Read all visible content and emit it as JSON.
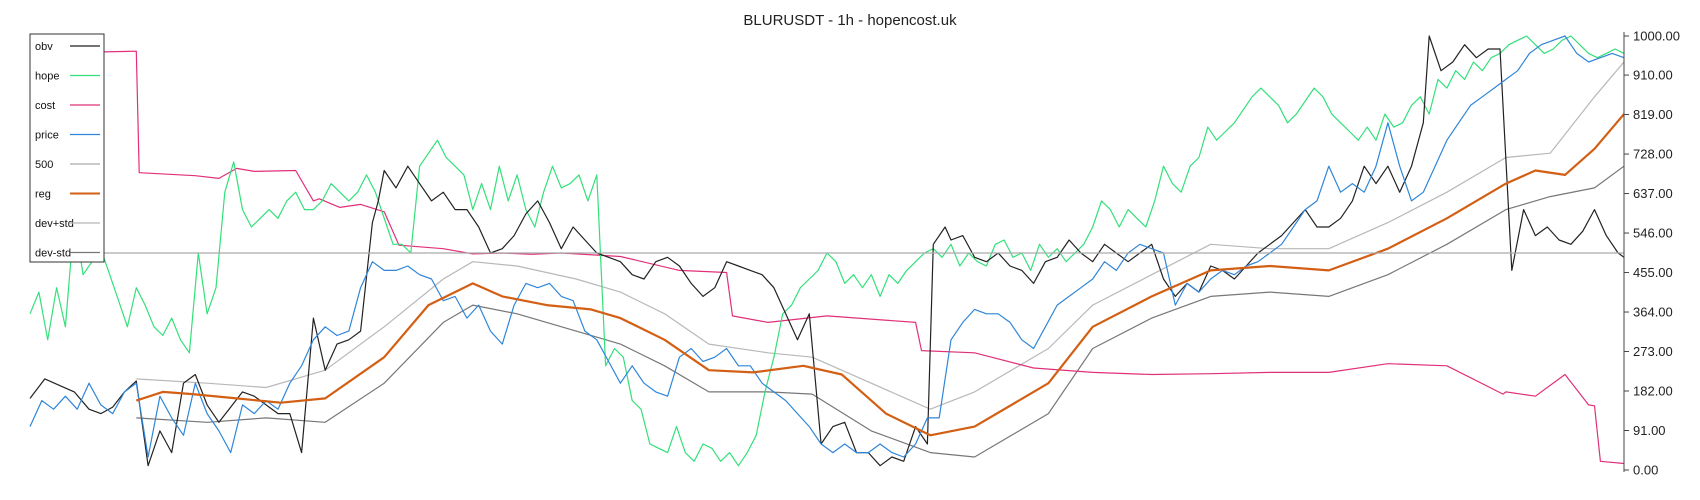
{
  "chart_data": {
    "type": "line",
    "title": "BLURUSDT - 1h - hopencost.uk",
    "xlabel": "",
    "ylabel": "",
    "ylim": [
      0,
      1000
    ],
    "yticks": [
      "0.00",
      "91.00",
      "182.00",
      "273.00",
      "364.00",
      "455.00",
      "546.00",
      "637.00",
      "728.00",
      "819.00",
      "910.00",
      "1000.00"
    ],
    "ytick_values": [
      0,
      91,
      182,
      273,
      364,
      455,
      546,
      637,
      728,
      819,
      910,
      1000
    ],
    "reference_line": 500,
    "grid": false,
    "legend_position": "top-left",
    "legend": [
      "obv",
      "hope",
      "cost",
      "price",
      "500",
      "reg",
      "dev+std",
      "dev-std"
    ],
    "series": [
      {
        "name": "obv",
        "color": "#222222",
        "x": [
          0,
          5,
          10,
          15,
          20,
          24,
          28,
          32,
          36,
          40,
          44,
          48,
          52,
          56,
          60,
          64,
          68,
          72,
          76,
          80,
          84,
          88,
          92,
          96,
          100,
          104,
          108,
          112,
          116,
          118,
          120,
          124,
          128,
          132,
          136,
          140,
          144,
          148,
          152,
          156,
          160,
          164,
          168,
          172,
          176,
          180,
          184,
          188,
          192,
          196,
          200,
          204,
          208,
          212,
          216,
          220,
          224,
          228,
          232,
          236,
          240,
          244,
          248,
          252,
          256,
          260,
          264,
          268,
          272,
          276,
          280,
          284,
          288,
          292,
          296,
          300,
          304,
          306,
          310,
          312,
          316,
          320,
          324,
          328,
          332,
          336,
          340,
          344,
          348,
          352,
          356,
          360,
          364,
          368,
          372,
          376,
          380,
          384,
          388,
          392,
          396,
          400,
          404,
          408,
          412,
          416,
          420,
          424,
          428,
          432,
          436,
          440,
          444,
          448,
          452,
          456,
          460,
          464,
          468,
          472,
          474,
          478,
          482,
          486,
          490,
          494,
          498,
          502,
          506,
          510,
          514,
          518,
          522,
          526,
          530,
          534,
          538,
          540
        ],
        "y": [
          165,
          210,
          195,
          180,
          140,
          130,
          145,
          180,
          205,
          10,
          90,
          40,
          200,
          220,
          150,
          110,
          145,
          180,
          170,
          150,
          130,
          130,
          40,
          350,
          230,
          290,
          300,
          320,
          570,
          620,
          690,
          650,
          700,
          660,
          620,
          640,
          600,
          600,
          560,
          500,
          510,
          540,
          590,
          620,
          570,
          510,
          560,
          530,
          500,
          490,
          480,
          450,
          440,
          480,
          490,
          470,
          430,
          400,
          420,
          480,
          470,
          460,
          450,
          420,
          360,
          300,
          360,
          60,
          100,
          110,
          40,
          40,
          10,
          30,
          20,
          100,
          60,
          520,
          560,
          530,
          540,
          490,
          480,
          500,
          470,
          460,
          430,
          480,
          490,
          530,
          500,
          480,
          520,
          500,
          480,
          500,
          520,
          440,
          400,
          430,
          410,
          470,
          460,
          440,
          470,
          500,
          520,
          540,
          570,
          600,
          560,
          560,
          580,
          620,
          700,
          660,
          700,
          640,
          700,
          800,
          1000,
          920,
          940,
          980,
          950,
          970,
          970,
          460,
          600,
          540,
          560,
          530,
          520,
          550,
          600,
          540,
          500,
          490
        ]
      },
      {
        "name": "hope",
        "color": "#33e07a",
        "x": [
          0,
          3,
          6,
          9,
          12,
          15,
          18,
          21,
          24,
          27,
          30,
          33,
          36,
          39,
          42,
          45,
          48,
          51,
          54,
          57,
          60,
          63,
          66,
          69,
          72,
          75,
          78,
          81,
          84,
          87,
          90,
          93,
          96,
          99,
          102,
          105,
          108,
          111,
          114,
          117,
          120,
          123,
          126,
          129,
          132,
          135,
          138,
          141,
          144,
          147,
          150,
          153,
          156,
          159,
          162,
          165,
          168,
          171,
          174,
          177,
          180,
          183,
          186,
          189,
          192,
          195,
          198,
          201,
          204,
          207,
          210,
          213,
          216,
          219,
          222,
          225,
          228,
          231,
          234,
          237,
          240,
          243,
          246,
          249,
          252,
          255,
          258,
          261,
          264,
          267,
          270,
          273,
          276,
          279,
          282,
          285,
          288,
          291,
          294,
          297,
          300,
          303,
          306,
          309,
          312,
          315,
          318,
          321,
          324,
          327,
          330,
          333,
          336,
          339,
          342,
          345,
          348,
          351,
          354,
          357,
          360,
          363,
          366,
          369,
          372,
          375,
          378,
          381,
          384,
          387,
          390,
          393,
          396,
          399,
          402,
          405,
          408,
          411,
          414,
          417,
          420,
          423,
          426,
          429,
          432,
          435,
          438,
          441,
          444,
          447,
          450,
          453,
          456,
          459,
          462,
          465,
          468,
          471,
          474,
          477,
          480,
          483,
          486,
          489,
          492,
          495,
          498,
          501,
          504,
          507,
          510,
          513,
          516,
          519,
          522,
          525,
          528,
          531,
          534,
          537,
          540
        ],
        "y": [
          360,
          410,
          300,
          420,
          330,
          580,
          450,
          480,
          510,
          450,
          390,
          330,
          420,
          380,
          330,
          310,
          350,
          300,
          270,
          500,
          360,
          420,
          640,
          710,
          600,
          560,
          580,
          600,
          580,
          620,
          640,
          600,
          600,
          620,
          660,
          640,
          620,
          640,
          680,
          640,
          580,
          520,
          520,
          500,
          700,
          730,
          760,
          720,
          700,
          680,
          600,
          660,
          600,
          700,
          620,
          680,
          600,
          560,
          640,
          700,
          650,
          660,
          680,
          620,
          680,
          240,
          280,
          260,
          160,
          140,
          60,
          50,
          40,
          100,
          40,
          20,
          60,
          50,
          20,
          40,
          10,
          40,
          80,
          180,
          260,
          360,
          380,
          420,
          440,
          460,
          500,
          480,
          430,
          450,
          420,
          450,
          400,
          450,
          430,
          460,
          480,
          500,
          510,
          490,
          520,
          470,
          500,
          480,
          470,
          520,
          530,
          490,
          500,
          460,
          520,
          490,
          510,
          480,
          500,
          520,
          560,
          620,
          600,
          560,
          600,
          580,
          560,
          620,
          700,
          660,
          640,
          700,
          720,
          790,
          760,
          780,
          800,
          830,
          860,
          880,
          860,
          840,
          800,
          820,
          850,
          880,
          860,
          820,
          800,
          780,
          760,
          790,
          760,
          820,
          790,
          800,
          840,
          860,
          820,
          900,
          880,
          920,
          900,
          940,
          920,
          950,
          960,
          980,
          990,
          1000,
          980,
          960,
          970,
          990,
          1000,
          980,
          960,
          950,
          960,
          970,
          960
        ]
      },
      {
        "name": "cost",
        "color": "#e0307a",
        "x": [
          0,
          36,
          37,
          56,
          64,
          70,
          76,
          90,
          96,
          98,
          105,
          112,
          120,
          125,
          140,
          150,
          160,
          170,
          180,
          200,
          220,
          236,
          238,
          250,
          270,
          300,
          302,
          320,
          340,
          360,
          380,
          400,
          420,
          440,
          460,
          480,
          499,
          500,
          510,
          520,
          528,
          530,
          532,
          540
        ],
        "y": [
          960,
          965,
          685,
          678,
          672,
          695,
          688,
          690,
          620,
          625,
          605,
          612,
          595,
          518,
          510,
          498,
          500,
          497,
          500,
          492,
          460,
          455,
          355,
          340,
          355,
          340,
          275,
          270,
          235,
          225,
          220,
          222,
          225,
          225,
          245,
          240,
          175,
          180,
          170,
          220,
          150,
          148,
          20,
          15
        ]
      },
      {
        "name": "price",
        "color": "#2f86d8",
        "x": [
          0,
          4,
          8,
          12,
          16,
          20,
          24,
          28,
          32,
          36,
          40,
          44,
          48,
          52,
          56,
          60,
          64,
          68,
          72,
          76,
          80,
          84,
          88,
          92,
          96,
          100,
          104,
          108,
          112,
          116,
          120,
          124,
          128,
          132,
          136,
          140,
          144,
          148,
          152,
          156,
          160,
          164,
          168,
          172,
          176,
          180,
          184,
          188,
          192,
          196,
          200,
          204,
          208,
          212,
          216,
          220,
          224,
          228,
          232,
          236,
          240,
          244,
          248,
          252,
          256,
          260,
          264,
          268,
          272,
          276,
          280,
          284,
          288,
          292,
          296,
          300,
          304,
          308,
          312,
          316,
          320,
          324,
          328,
          332,
          336,
          340,
          344,
          348,
          352,
          356,
          360,
          364,
          368,
          372,
          376,
          380,
          384,
          388,
          392,
          396,
          400,
          404,
          408,
          412,
          416,
          420,
          424,
          428,
          432,
          436,
          440,
          444,
          448,
          452,
          456,
          460,
          464,
          468,
          472,
          476,
          480,
          484,
          488,
          492,
          496,
          500,
          504,
          508,
          512,
          516,
          520,
          524,
          528,
          532,
          536,
          540
        ],
        "y": [
          100,
          160,
          140,
          170,
          140,
          200,
          150,
          130,
          180,
          200,
          30,
          170,
          120,
          80,
          200,
          130,
          90,
          40,
          150,
          130,
          160,
          140,
          200,
          240,
          300,
          330,
          310,
          320,
          420,
          480,
          460,
          460,
          470,
          450,
          440,
          390,
          400,
          350,
          380,
          320,
          290,
          380,
          430,
          420,
          430,
          400,
          390,
          320,
          300,
          250,
          200,
          240,
          200,
          180,
          170,
          260,
          280,
          250,
          260,
          280,
          240,
          240,
          200,
          180,
          160,
          130,
          100,
          60,
          40,
          60,
          40,
          40,
          60,
          40,
          30,
          60,
          120,
          120,
          300,
          340,
          370,
          360,
          360,
          340,
          300,
          280,
          330,
          380,
          400,
          420,
          440,
          480,
          460,
          500,
          520,
          510,
          500,
          380,
          430,
          410,
          440,
          460,
          450,
          470,
          480,
          500,
          520,
          560,
          600,
          620,
          700,
          640,
          660,
          640,
          700,
          800,
          700,
          620,
          640,
          700,
          760,
          800,
          840,
          860,
          880,
          900,
          920,
          960,
          980,
          990,
          1000,
          960,
          940,
          950,
          960,
          950
        ]
      },
      {
        "name": "reg",
        "color": "#d35f14",
        "x": [
          36,
          45,
          55,
          70,
          85,
          100,
          120,
          135,
          150,
          160,
          175,
          190,
          200,
          215,
          230,
          245,
          262,
          275,
          290,
          305,
          320,
          345,
          360,
          380,
          400,
          420,
          440,
          460,
          480,
          500,
          510,
          520,
          530,
          540
        ],
        "y": [
          160,
          180,
          175,
          165,
          155,
          165,
          260,
          380,
          430,
          400,
          380,
          370,
          350,
          300,
          230,
          225,
          240,
          220,
          130,
          80,
          100,
          200,
          330,
          400,
          460,
          470,
          460,
          510,
          580,
          660,
          690,
          680,
          740,
          820
        ]
      },
      {
        "name": "dev+std",
        "color": "#b8b8b8",
        "x": [
          36,
          60,
          80,
          100,
          120,
          140,
          150,
          165,
          185,
          200,
          215,
          230,
          250,
          265,
          285,
          305,
          320,
          345,
          360,
          380,
          400,
          420,
          440,
          460,
          480,
          500,
          515,
          530,
          540
        ],
        "y": [
          210,
          200,
          190,
          230,
          330,
          440,
          480,
          470,
          440,
          410,
          360,
          290,
          270,
          260,
          200,
          140,
          180,
          280,
          380,
          450,
          520,
          510,
          510,
          570,
          640,
          720,
          730,
          860,
          940
        ]
      },
      {
        "name": "dev-std",
        "color": "#777777",
        "x": [
          36,
          60,
          80,
          100,
          120,
          140,
          150,
          165,
          185,
          200,
          215,
          230,
          250,
          265,
          285,
          305,
          320,
          345,
          360,
          380,
          400,
          420,
          440,
          460,
          480,
          500,
          515,
          530,
          540
        ],
        "y": [
          120,
          110,
          120,
          110,
          200,
          340,
          380,
          360,
          320,
          290,
          240,
          180,
          180,
          175,
          90,
          40,
          30,
          130,
          280,
          350,
          400,
          410,
          400,
          450,
          520,
          600,
          630,
          650,
          700
        ]
      }
    ]
  }
}
